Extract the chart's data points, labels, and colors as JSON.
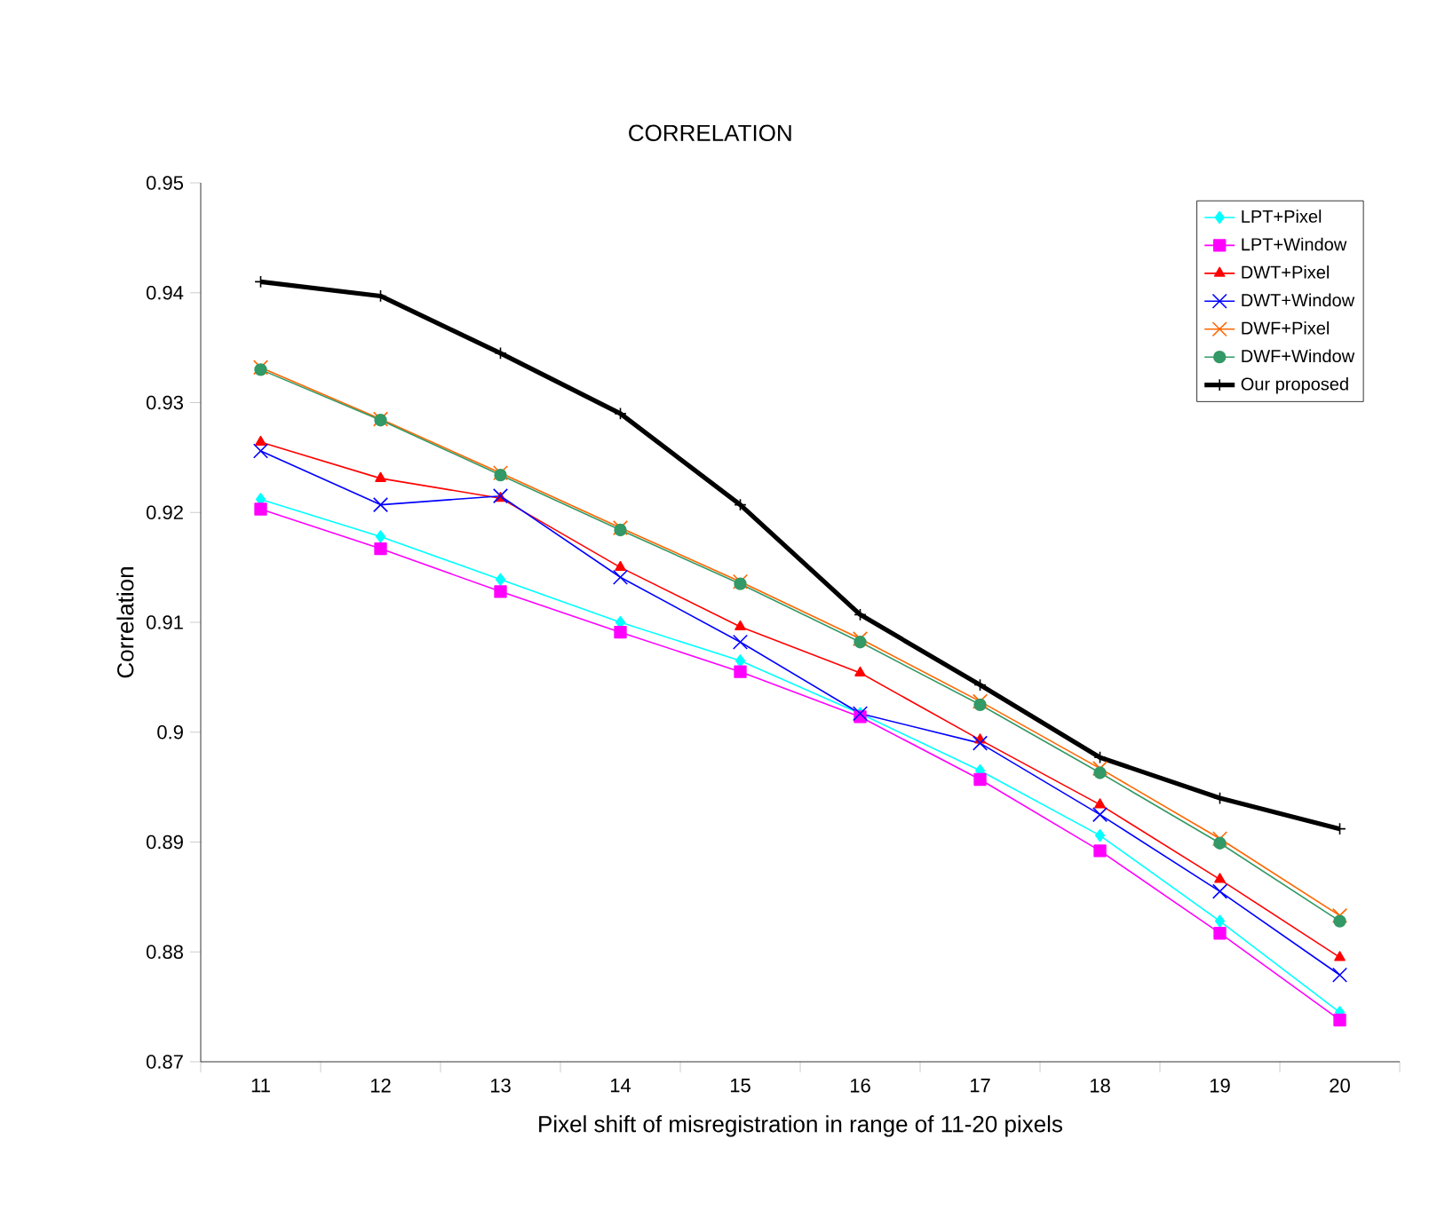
{
  "chart_data": {
    "type": "line",
    "title": "CORRELATION",
    "xlabel": "Pixel shift of misregistration in range of 11-20 pixels",
    "ylabel": "Correlation",
    "categories": [
      "11",
      "12",
      "13",
      "14",
      "15",
      "16",
      "17",
      "18",
      "19",
      "20"
    ],
    "ylim": [
      0.87,
      0.95
    ],
    "yticks": [
      0.87,
      0.88,
      0.89,
      0.9,
      0.91,
      0.92,
      0.93,
      0.94,
      0.95
    ],
    "legend": "top right",
    "series": [
      {
        "name": "LPT+Pixel",
        "color": "#00ffff",
        "marker": "diamond",
        "values": [
          0.9212,
          0.9178,
          0.9139,
          0.91,
          0.9065,
          0.9017,
          0.8965,
          0.8906,
          0.8828,
          0.8745
        ]
      },
      {
        "name": "LPT+Window",
        "color": "#ff00ff",
        "marker": "square",
        "values": [
          0.9203,
          0.9167,
          0.9128,
          0.9091,
          0.9055,
          0.9014,
          0.8957,
          0.8892,
          0.8817,
          0.8738
        ]
      },
      {
        "name": "DWT+Pixel",
        "color": "#ff0000",
        "marker": "triangle",
        "values": [
          0.9264,
          0.9231,
          0.9213,
          0.915,
          0.9096,
          0.9054,
          0.8993,
          0.8934,
          0.8866,
          0.8795
        ]
      },
      {
        "name": "DWT+Window",
        "color": "#0000ff",
        "marker": "cross",
        "values": [
          0.9256,
          0.9207,
          0.9215,
          0.9141,
          0.9082,
          0.9017,
          0.899,
          0.8925,
          0.8855,
          0.8779
        ]
      },
      {
        "name": "DWF+Pixel",
        "color": "#ff6600",
        "marker": "cross",
        "values": [
          0.9332,
          0.9285,
          0.9236,
          0.9186,
          0.9137,
          0.9085,
          0.9028,
          0.8967,
          0.8903,
          0.8833
        ]
      },
      {
        "name": "DWF+Window",
        "color": "#339966",
        "marker": "circle",
        "values": [
          0.933,
          0.9284,
          0.9234,
          0.9184,
          0.9135,
          0.9082,
          0.9025,
          0.8963,
          0.8899,
          0.8828
        ]
      },
      {
        "name": "Our proposed",
        "color": "#000000",
        "marker": "plus",
        "values": [
          0.941,
          0.9397,
          0.9345,
          0.929,
          0.9207,
          0.9107,
          0.9043,
          0.8977,
          0.894,
          0.8912
        ]
      }
    ]
  }
}
